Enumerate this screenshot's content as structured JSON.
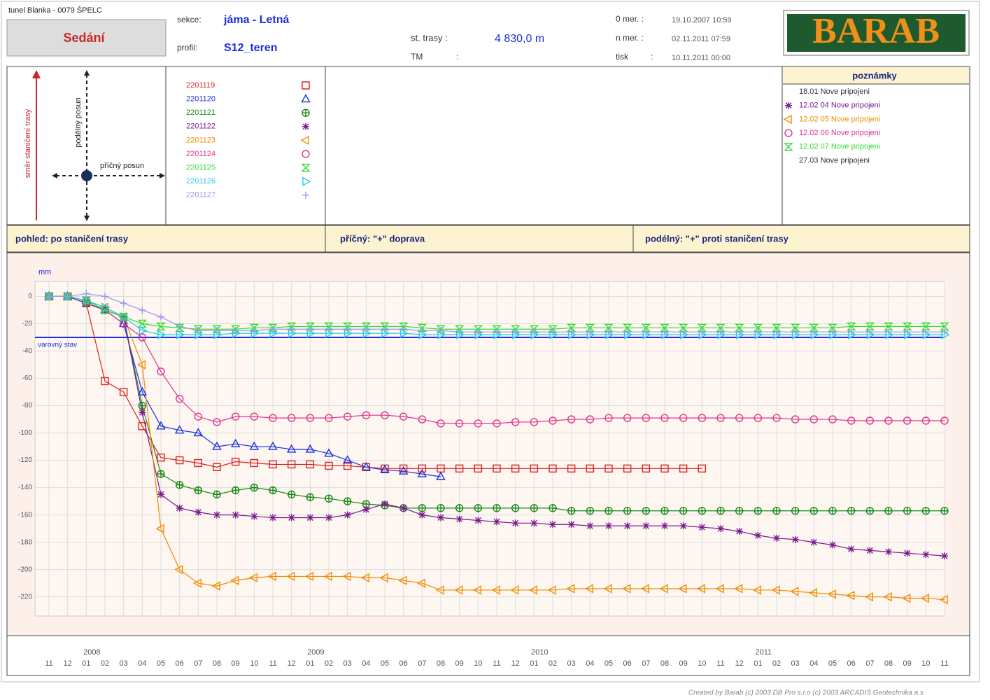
{
  "header": {
    "project": "tunel Blanka - 0079 ŠPELC",
    "title": "Sedání",
    "section_label": "sekce:",
    "section": "jáma - Letná",
    "profile_label": "profil:",
    "profile": "S12_teren",
    "station_label": "st. trasy :",
    "station": "4 830,0 m",
    "tm_label": "TM",
    "tm_sep": ":",
    "first_label": "0 mer. :",
    "first": "19.10.2007 10:59",
    "last_label": "n mer. :",
    "last": "02.11.2011 07:59",
    "print_label": "tisk",
    "print_sep": ":",
    "print": "10.11.2011 00:00",
    "logo": "BARAB"
  },
  "diagram": {
    "axis_long": "směr staničení trasy",
    "long": "podélný posun",
    "cross": "příčný posun"
  },
  "notes": {
    "title": "poznámky",
    "items": [
      {
        "text": "18.01 Nove pripojeni"
      },
      {
        "text": "12.02 04 Nove pripojeni",
        "color": "#7a1a8e",
        "marker": "asterisk"
      },
      {
        "text": "12.02 05 Nove pripojeni",
        "color": "#f08c00",
        "marker": "triangle-left"
      },
      {
        "text": "12.02 06 Nove pripojeni",
        "color": "#e0338f",
        "marker": "circle"
      },
      {
        "text": "12.02 07 Nove pripojeni",
        "color": "#33dd33",
        "marker": "hourglass"
      },
      {
        "text": "27.03 Nove pripojeni"
      }
    ]
  },
  "bar": {
    "view": "pohled: po  staničení trasy",
    "cross": "příčný:  \"+\"  doprava",
    "long": "podélný:  \"+\"  proti  staničení trasy"
  },
  "footer": "Created by Barab (c) 2003 DB Pro s.r.o (c) 2003 ARCADIS Geotechnika a.s",
  "chart_data": {
    "type": "line",
    "y_label": "mm",
    "ylim": [
      -234,
      11
    ],
    "yticks": [
      0,
      -20,
      -40,
      -60,
      -80,
      -100,
      -120,
      -140,
      -160,
      -180,
      -200,
      -220
    ],
    "grid": true,
    "threshold": {
      "value": -30,
      "label": "varovný stav",
      "color": "#1c2fe0"
    },
    "x": [
      "2007-11",
      "2007-12",
      "2008-01",
      "2008-02",
      "2008-03",
      "2008-04",
      "2008-05",
      "2008-06",
      "2008-07",
      "2008-08",
      "2008-09",
      "2008-10",
      "2008-11",
      "2008-12",
      "2009-01",
      "2009-02",
      "2009-03",
      "2009-04",
      "2009-05",
      "2009-06",
      "2009-07",
      "2009-08",
      "2009-09",
      "2009-10",
      "2009-11",
      "2009-12",
      "2010-01",
      "2010-02",
      "2010-03",
      "2010-04",
      "2010-05",
      "2010-06",
      "2010-07",
      "2010-08",
      "2010-09",
      "2010-10",
      "2010-11",
      "2010-12",
      "2011-01",
      "2011-02",
      "2011-03",
      "2011-04",
      "2011-05",
      "2011-06",
      "2011-07",
      "2011-08",
      "2011-09",
      "2011-10",
      "2011-11"
    ],
    "xticks": [
      {
        "value": "2007-11",
        "label": "11"
      },
      {
        "value": "2007-12",
        "label": "12"
      },
      {
        "value": "2008-01",
        "label": "01"
      },
      {
        "value": "2008-02",
        "label": "02"
      },
      {
        "value": "2008-03",
        "label": "03"
      },
      {
        "value": "2008-04",
        "label": "04"
      },
      {
        "value": "2008-05",
        "label": "05"
      },
      {
        "value": "2008-06",
        "label": "06"
      },
      {
        "value": "2008-07",
        "label": "07"
      },
      {
        "value": "2008-08",
        "label": "08"
      },
      {
        "value": "2008-09",
        "label": "09"
      },
      {
        "value": "2008-10",
        "label": "10"
      },
      {
        "value": "2008-11",
        "label": "11"
      },
      {
        "value": "2008-12",
        "label": "12"
      },
      {
        "value": "2009-01",
        "label": "01"
      },
      {
        "value": "2009-02",
        "label": "02"
      },
      {
        "value": "2009-03",
        "label": "03"
      },
      {
        "value": "2009-04",
        "label": "04"
      },
      {
        "value": "2009-05",
        "label": "05"
      },
      {
        "value": "2009-06",
        "label": "06"
      },
      {
        "value": "2009-07",
        "label": "07"
      },
      {
        "value": "2009-08",
        "label": "08"
      },
      {
        "value": "2009-09",
        "label": "09"
      },
      {
        "value": "2009-10",
        "label": "10"
      },
      {
        "value": "2009-11",
        "label": "11"
      },
      {
        "value": "2009-12",
        "label": "12"
      },
      {
        "value": "2010-01",
        "label": "01"
      },
      {
        "value": "2010-02",
        "label": "02"
      },
      {
        "value": "2010-03",
        "label": "03"
      },
      {
        "value": "2010-04",
        "label": "04"
      },
      {
        "value": "2010-05",
        "label": "05"
      },
      {
        "value": "2010-06",
        "label": "06"
      },
      {
        "value": "2010-07",
        "label": "07"
      },
      {
        "value": "2010-08",
        "label": "08"
      },
      {
        "value": "2010-09",
        "label": "09"
      },
      {
        "value": "2010-10",
        "label": "10"
      },
      {
        "value": "2010-11",
        "label": "11"
      },
      {
        "value": "2010-12",
        "label": "12"
      },
      {
        "value": "2011-01",
        "label": "01"
      },
      {
        "value": "2011-02",
        "label": "02"
      },
      {
        "value": "2011-03",
        "label": "03"
      },
      {
        "value": "2011-04",
        "label": "04"
      },
      {
        "value": "2011-05",
        "label": "05"
      },
      {
        "value": "2011-06",
        "label": "06"
      },
      {
        "value": "2011-07",
        "label": "07"
      },
      {
        "value": "2011-08",
        "label": "08"
      },
      {
        "value": "2011-09",
        "label": "09"
      },
      {
        "value": "2011-10",
        "label": "10"
      },
      {
        "value": "2011-11",
        "label": "11"
      }
    ],
    "xyears": [
      {
        "value": "2008-01",
        "label": "2008"
      },
      {
        "value": "2009-01",
        "label": "2009"
      },
      {
        "value": "2010-01",
        "label": "2010"
      },
      {
        "value": "2011-01",
        "label": "2011"
      }
    ],
    "series": [
      {
        "name": "2201119",
        "color": "#e02020",
        "marker": "square",
        "values": [
          0,
          0,
          -5,
          -62,
          -70,
          -95,
          -118,
          -120,
          -122,
          -125,
          -121,
          -122,
          -123,
          -123,
          -123,
          -124,
          -124,
          -125,
          -126,
          -126,
          -126,
          -126,
          -126,
          -126,
          -126,
          -126,
          -126,
          -126,
          -126,
          -126,
          -126,
          -126,
          -126,
          -126,
          -126,
          -126,
          null,
          null,
          null,
          null,
          null,
          null,
          null,
          null,
          null,
          null,
          null,
          null,
          null
        ]
      },
      {
        "name": "2201120",
        "color": "#1c2fe0",
        "marker": "triangle",
        "values": [
          0,
          0,
          -3,
          -10,
          -20,
          -70,
          -95,
          -98,
          -100,
          -110,
          -108,
          -110,
          -110,
          -112,
          -112,
          -115,
          -120,
          -125,
          -127,
          -128,
          -130,
          -132,
          null,
          null,
          null,
          null,
          null,
          null,
          null,
          null,
          null,
          null,
          null,
          null,
          null,
          null,
          null,
          null,
          null,
          null,
          null,
          null,
          null,
          null,
          null,
          null,
          null,
          null,
          null
        ]
      },
      {
        "name": "2201121",
        "color": "#1a8a1a",
        "marker": "cross-circle",
        "values": [
          0,
          0,
          -5,
          -10,
          -15,
          -80,
          -130,
          -138,
          -142,
          -145,
          -142,
          -140,
          -142,
          -145,
          -147,
          -148,
          -150,
          -152,
          -153,
          -155,
          -155,
          -155,
          -155,
          -155,
          -155,
          -155,
          -155,
          -155,
          -157,
          -157,
          -157,
          -157,
          -157,
          -157,
          -157,
          -157,
          -157,
          -157,
          -157,
          -157,
          -157,
          -157,
          -157,
          -157,
          -157,
          -157,
          -157,
          -157,
          -157
        ]
      },
      {
        "name": "2201122",
        "color": "#7a1a8e",
        "marker": "asterisk",
        "values": [
          0,
          0,
          -5,
          -10,
          -15,
          -85,
          -145,
          -155,
          -158,
          -160,
          -160,
          -161,
          -162,
          -162,
          -162,
          -162,
          -160,
          -156,
          -152,
          -155,
          -160,
          -162,
          -163,
          -164,
          -165,
          -166,
          -166,
          -167,
          -167,
          -168,
          -168,
          -168,
          -168,
          -168,
          -168,
          -169,
          -170,
          -172,
          -175,
          -177,
          -178,
          -180,
          -182,
          -185,
          -186,
          -187,
          -188,
          -189,
          -190
        ]
      },
      {
        "name": "2201123",
        "color": "#f08c00",
        "marker": "triangle-left",
        "values": [
          0,
          0,
          -3,
          -8,
          -15,
          -50,
          -170,
          -200,
          -210,
          -212,
          -208,
          -206,
          -205,
          -205,
          -205,
          -205,
          -205,
          -206,
          -206,
          -208,
          -210,
          -215,
          -215,
          -215,
          -215,
          -215,
          -215,
          -215,
          -214,
          -214,
          -214,
          -214,
          -214,
          -214,
          -214,
          -214,
          -214,
          -214,
          -215,
          -215,
          -216,
          -217,
          -218,
          -219,
          -220,
          -220,
          -221,
          -221,
          -222
        ]
      },
      {
        "name": "2201124",
        "color": "#e0338f",
        "marker": "circle",
        "values": [
          0,
          0,
          -3,
          -10,
          -20,
          -30,
          -55,
          -75,
          -88,
          -92,
          -88,
          -88,
          -89,
          -89,
          -89,
          -89,
          -88,
          -87,
          -87,
          -88,
          -90,
          -93,
          -93,
          -93,
          -93,
          -92,
          -92,
          -91,
          -90,
          -90,
          -89,
          -89,
          -89,
          -89,
          -89,
          -89,
          -89,
          -89,
          -89,
          -89,
          -90,
          -90,
          -90,
          -91,
          -91,
          -91,
          -91,
          -91,
          -91
        ]
      },
      {
        "name": "2201125",
        "color": "#33dd33",
        "marker": "hourglass",
        "values": [
          0,
          0,
          -3,
          -10,
          -15,
          -20,
          -22,
          -23,
          -24,
          -24,
          -24,
          -23,
          -23,
          -22,
          -22,
          -22,
          -22,
          -22,
          -22,
          -22,
          -23,
          -24,
          -24,
          -24,
          -24,
          -24,
          -24,
          -24,
          -23,
          -23,
          -23,
          -23,
          -23,
          -23,
          -23,
          -23,
          -23,
          -23,
          -23,
          -23,
          -23,
          -23,
          -23,
          -22,
          -22,
          -22,
          -22,
          -22,
          -22
        ]
      },
      {
        "name": "2201126",
        "color": "#22ccee",
        "marker": "triangle-right",
        "values": [
          0,
          0,
          -3,
          -8,
          -15,
          -25,
          -28,
          -28,
          -28,
          -28,
          -27,
          -27,
          -27,
          -27,
          -27,
          -27,
          -27,
          -27,
          -27,
          -27,
          -28,
          -28,
          -28,
          -28,
          -28,
          -28,
          -28,
          -28,
          -28,
          -28,
          -28,
          -28,
          -28,
          -28,
          -28,
          -28,
          -28,
          -28,
          -28,
          -28,
          -28,
          -28,
          -28,
          -28,
          -28,
          -28,
          -28,
          -28,
          -28
        ]
      },
      {
        "name": "2201127",
        "color": "#9999ee",
        "marker": "plus",
        "values": [
          0,
          0,
          2,
          0,
          -5,
          -10,
          -15,
          -22,
          -25,
          -25,
          -25,
          -25,
          -24,
          -24,
          -24,
          -24,
          -24,
          -24,
          -24,
          -24,
          -25,
          -25,
          -26,
          -26,
          -26,
          -26,
          -26,
          -26,
          -26,
          -26,
          -26,
          -26,
          -26,
          -26,
          -26,
          -26,
          -26,
          -26,
          -26,
          -26,
          -26,
          -26,
          -26,
          -26,
          -26,
          -26,
          -26,
          -26,
          -26
        ]
      }
    ]
  }
}
